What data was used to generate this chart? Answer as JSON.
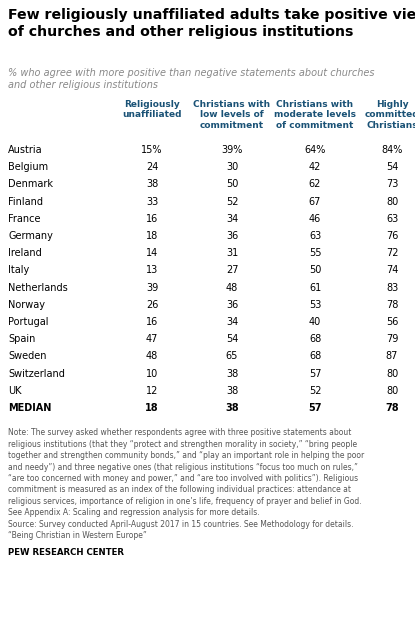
{
  "title": "Few religiously unaffiliated adults take positive views\nof churches and other religious institutions",
  "subtitle": "% who agree with more positive than negative statements about churches\nand other religious institutions",
  "col_headers": [
    "Religiously\nunaffiliated",
    "Christians with\nlow levels of\ncommitment",
    "Christians with\nmoderate levels\nof commitment",
    "Highly\ncommitted\nChristians"
  ],
  "countries": [
    "Austria",
    "Belgium",
    "Denmark",
    "Finland",
    "France",
    "Germany",
    "Ireland",
    "Italy",
    "Netherlands",
    "Norway",
    "Portugal",
    "Spain",
    "Sweden",
    "Switzerland",
    "UK",
    "MEDIAN"
  ],
  "data": [
    [
      15,
      39,
      64,
      84
    ],
    [
      24,
      30,
      42,
      54
    ],
    [
      38,
      50,
      62,
      73
    ],
    [
      33,
      52,
      67,
      80
    ],
    [
      16,
      34,
      46,
      63
    ],
    [
      18,
      36,
      63,
      76
    ],
    [
      14,
      31,
      55,
      72
    ],
    [
      13,
      27,
      50,
      74
    ],
    [
      39,
      48,
      61,
      83
    ],
    [
      26,
      36,
      53,
      78
    ],
    [
      16,
      34,
      40,
      56
    ],
    [
      47,
      54,
      68,
      79
    ],
    [
      48,
      65,
      68,
      87
    ],
    [
      10,
      38,
      57,
      80
    ],
    [
      12,
      38,
      52,
      80
    ],
    [
      18,
      38,
      57,
      78
    ]
  ],
  "note": "Note: The survey asked whether respondents agree with three positive statements about\nreligious institutions (that they “protect and strengthen morality in society,” “bring people\ntogether and strengthen community bonds,” and “play an important role in helping the poor\nand needy”) and three negative ones (that religious institutions “focus too much on rules,”\n“are too concerned with money and power,” and “are too involved with politics”). Religious\ncommitment is measured as an index of the following individual practices: attendance at\nreligious services, importance of religion in one’s life, frequency of prayer and belief in God.\nSee Appendix A: Scaling and regression analysis for more details.\nSource: Survey conducted April-August 2017 in 15 countries. See Methodology for details.\n“Being Christian in Western Europe”",
  "source_label": "PEW RESEARCH CENTER",
  "title_color": "#000000",
  "subtitle_color": "#888888",
  "header_color": "#1a5276",
  "country_color": "#000000",
  "data_color": "#000000",
  "note_color": "#555555",
  "bg_color": "#ffffff",
  "line_color": "#cccccc"
}
